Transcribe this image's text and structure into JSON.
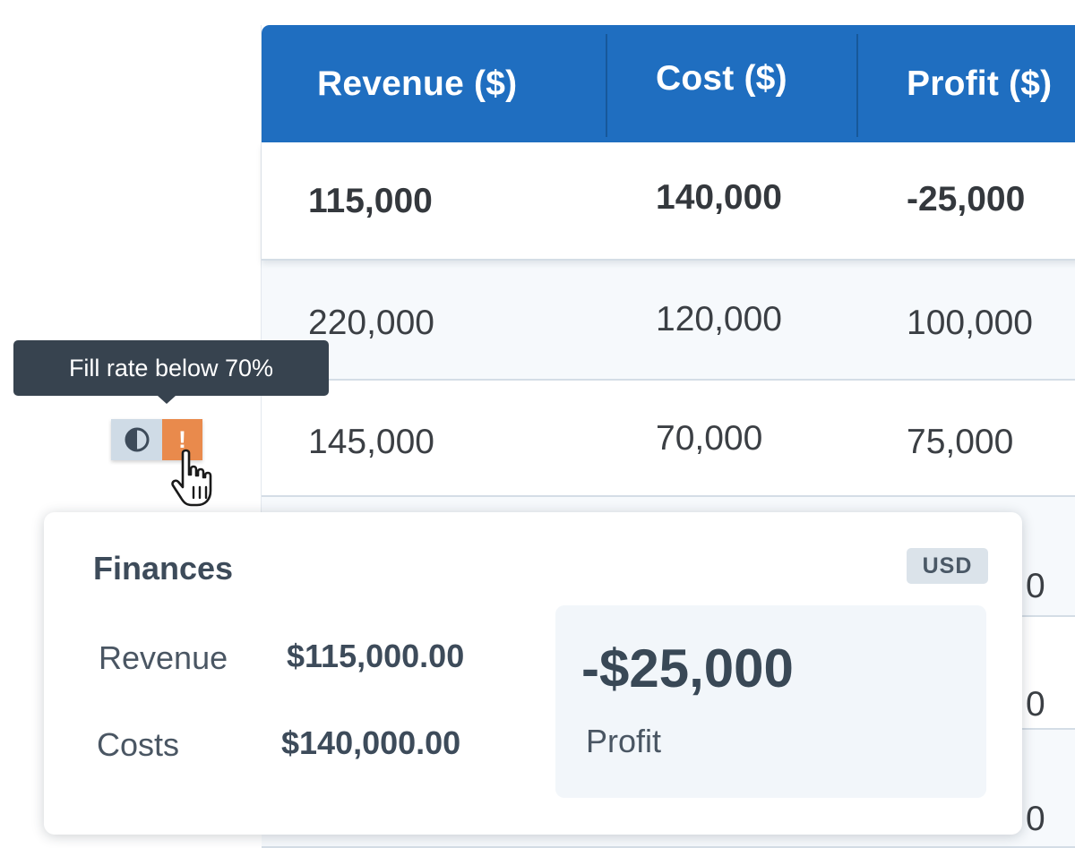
{
  "table": {
    "headers": [
      "Revenue ($)",
      "Cost ($)",
      "Profit ($)"
    ],
    "rows": [
      {
        "revenue": "115,000",
        "cost": "140,000",
        "profit": "-25,000"
      },
      {
        "revenue": "220,000",
        "cost": "120,000",
        "profit": "100,000"
      },
      {
        "revenue": "145,000",
        "cost": "70,000",
        "profit": "75,000"
      }
    ],
    "partial_cells": [
      "0",
      "0",
      "0"
    ]
  },
  "tooltip": {
    "text": "Fill rate below 70%"
  },
  "status_chip": {
    "left_icon": "half-circle-contrast-icon",
    "right_text": "!",
    "right_color": "#e98a4c"
  },
  "popover": {
    "title": "Finances",
    "currency_badge": "USD",
    "items": [
      {
        "label": "Revenue",
        "value": "$115,000.00"
      },
      {
        "label": "Costs",
        "value": "$140,000.00"
      }
    ],
    "profit_amount": "-$25,000",
    "profit_label": "Profit"
  },
  "colors": {
    "header_bg": "#1f6ec0",
    "tooltip_bg": "#37434f",
    "accent_warning": "#e98a4c"
  }
}
